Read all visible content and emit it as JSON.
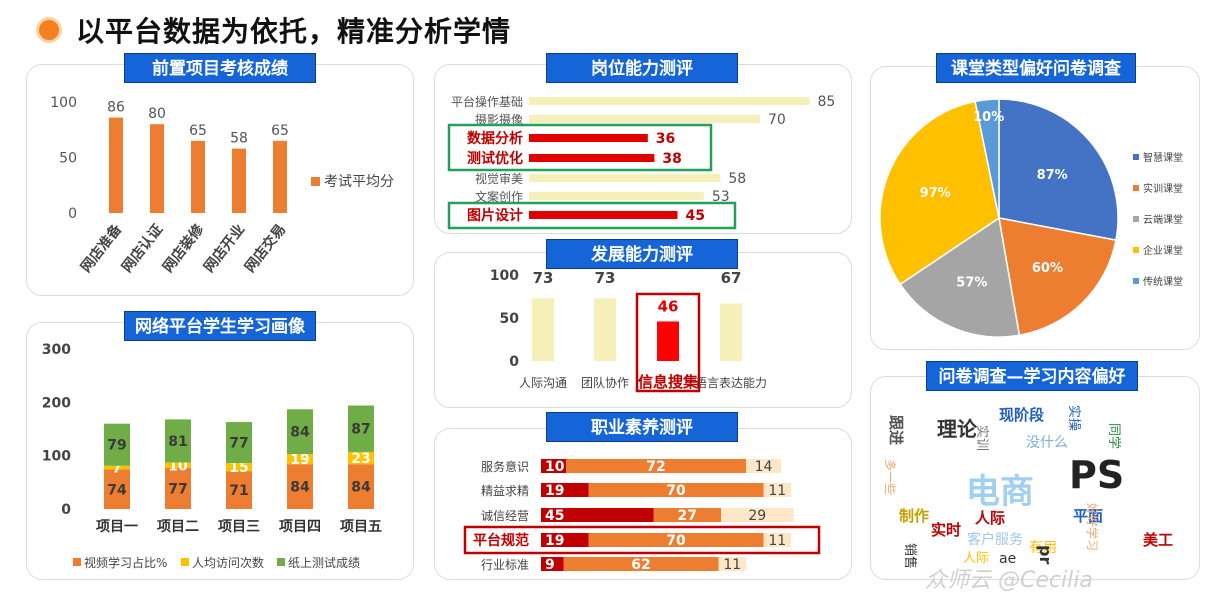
{
  "page_title": "以平台数据为依托，精准分析学情",
  "colors": {
    "accent_blue": "#1565d8",
    "orange": "#ed7d31",
    "red": "#e00000",
    "yellow": "#ffc000",
    "green": "#70ad47",
    "pale": "#f5f0b8"
  },
  "panels": {
    "exam": "前置项目考核成绩",
    "portrait": "网络平台学生学习画像",
    "post": "岗位能力测评",
    "dev": "发展能力测评",
    "pro": "职业素养测评",
    "survey": "课堂类型偏好问卷调查",
    "wordcloud": "问卷调查—学习内容偏好"
  },
  "watermark": "众师云 @Cecilia",
  "chart_data": [
    {
      "id": "exam",
      "type": "bar",
      "categories": [
        "网店准备",
        "网店认证",
        "网店装修",
        "网店开业",
        "网店交易"
      ],
      "series": [
        {
          "name": "考试平均分",
          "values": [
            86,
            80,
            65,
            58,
            65
          ]
        }
      ],
      "ylim": [
        0,
        100
      ],
      "yticks": [
        "0",
        "50",
        "100"
      ],
      "legend": "right"
    },
    {
      "id": "portrait",
      "type": "bar",
      "stacked": true,
      "categories": [
        "项目一",
        "项目二",
        "项目三",
        "项目四",
        "项目五"
      ],
      "series": [
        {
          "name": "视频学习占比%",
          "values": [
            74,
            77,
            71,
            84,
            84
          ]
        },
        {
          "name": "人均访问次数",
          "values": [
            7,
            10,
            15,
            19,
            23
          ]
        },
        {
          "name": "纸上测试成绩",
          "values": [
            79,
            81,
            77,
            84,
            87
          ]
        }
      ],
      "ylim": [
        0,
        300
      ],
      "yticks": [
        "0",
        "100",
        "200",
        "300"
      ],
      "legend": "bottom"
    },
    {
      "id": "post",
      "type": "bar",
      "orientation": "horizontal",
      "categories": [
        "平台操作基础",
        "摄影摄像",
        "数据分析",
        "测试优化",
        "视觉审美",
        "文案创作",
        "图片设计"
      ],
      "values": [
        85,
        70,
        36,
        38,
        58,
        53,
        45
      ],
      "highlight": [
        "数据分析",
        "测试优化",
        "图片设计"
      ],
      "xlim": [
        0,
        100
      ]
    },
    {
      "id": "dev",
      "type": "bar",
      "categories": [
        "人际沟通",
        "团队协作",
        "信息搜集",
        "语言表达能力"
      ],
      "values": [
        73,
        73,
        46,
        67
      ],
      "highlight": [
        "信息搜集"
      ],
      "ylim": [
        0,
        100
      ],
      "yticks": [
        "0",
        "50",
        "100"
      ]
    },
    {
      "id": "pro",
      "type": "bar",
      "orientation": "horizontal",
      "stacked": true,
      "categories": [
        "服务意识",
        "精益求精",
        "诚信经营",
        "平台规范",
        "行业标准"
      ],
      "series": [
        {
          "values": [
            10,
            19,
            45,
            19,
            9
          ]
        },
        {
          "values": [
            72,
            70,
            27,
            70,
            62
          ]
        },
        {
          "values": [
            14,
            11,
            29,
            11,
            11
          ]
        }
      ],
      "highlight": [
        "平台规范"
      ]
    },
    {
      "id": "survey",
      "type": "pie",
      "labels": [
        "智慧课堂",
        "实训课堂",
        "云端课堂",
        "企业课堂",
        "传统课堂"
      ],
      "values": [
        87,
        60,
        57,
        97,
        10
      ],
      "value_labels": [
        "87%",
        "60%",
        "57%",
        "97%",
        "10%"
      ],
      "colors": [
        "#4472c4",
        "#ed7d31",
        "#a5a5a5",
        "#ffc000",
        "#5b9bd5"
      ],
      "legend": "right"
    }
  ],
  "wordcloud": {
    "words": [
      {
        "text": "理论",
        "color": "#333333",
        "size": 20
      },
      {
        "text": "现阶段",
        "color": "#1f5fbf",
        "size": 15
      },
      {
        "text": "没什么",
        "color": "#7ab0e0",
        "size": 14
      },
      {
        "text": "电商",
        "color": "#9fd0ef",
        "size": 34
      },
      {
        "text": "PS",
        "color": "#222222",
        "size": 38
      },
      {
        "text": "平面",
        "color": "#1f5fbf",
        "size": 15
      },
      {
        "text": "制作",
        "color": "#c8a000",
        "size": 15
      },
      {
        "text": "实时",
        "color": "#c00000",
        "size": 15
      },
      {
        "text": "人际",
        "color": "#c00000",
        "size": 15
      },
      {
        "text": "客户服务",
        "color": "#9fc8e8",
        "size": 14
      },
      {
        "text": "有用",
        "color": "#ffc000",
        "size": 14
      },
      {
        "text": "美工",
        "color": "#c00000",
        "size": 15
      },
      {
        "text": "跟进",
        "color": "#555555",
        "size": 15
      },
      {
        "text": "实训",
        "color": "#777777",
        "size": 13
      },
      {
        "text": "实操",
        "color": "#1f5fbf",
        "size": 13
      },
      {
        "text": "同学",
        "color": "#2e8b3e",
        "size": 13
      },
      {
        "text": "好好学习",
        "color": "#f2a874",
        "size": 12
      },
      {
        "text": "多一些",
        "color": "#f2a874",
        "size": 12
      },
      {
        "text": "销售",
        "color": "#333333",
        "size": 13
      },
      {
        "text": "人际",
        "color": "#ffc000",
        "size": 13
      },
      {
        "text": "ae",
        "color": "#333333",
        "size": 14
      },
      {
        "text": "pr",
        "color": "#333333",
        "size": 16
      }
    ]
  }
}
